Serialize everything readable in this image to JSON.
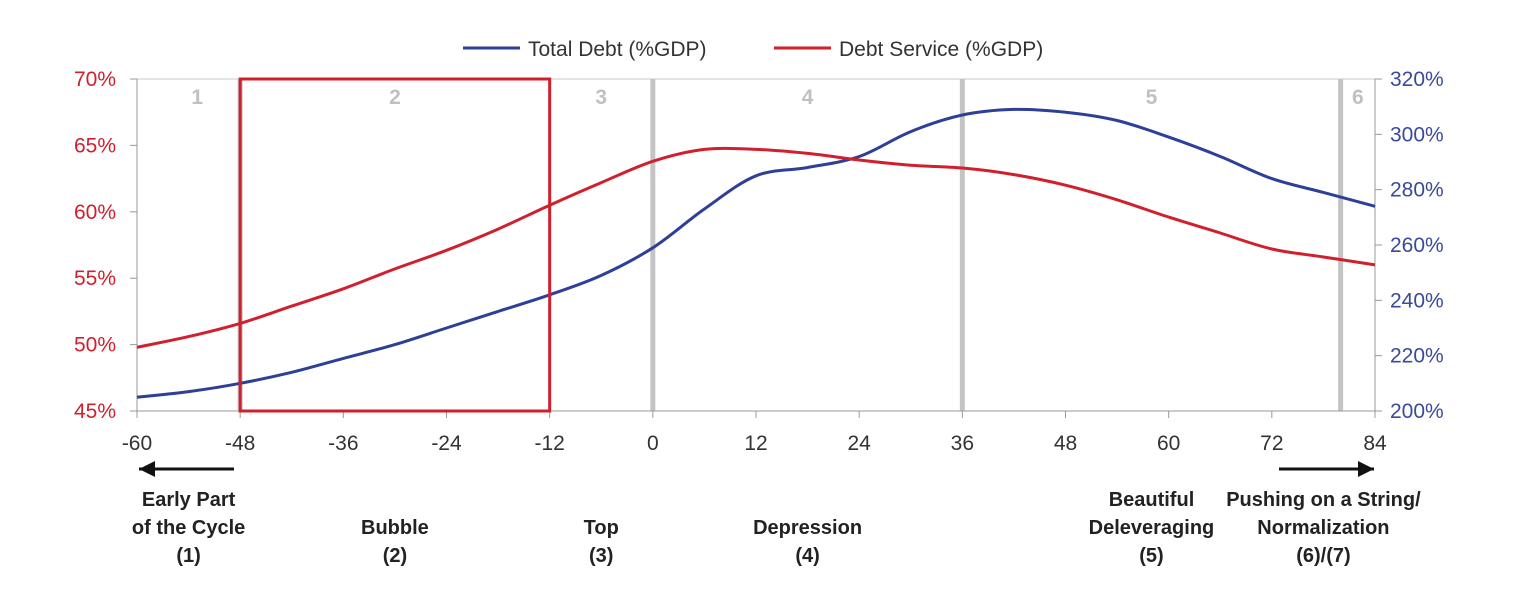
{
  "chart_data": {
    "type": "line",
    "title": "",
    "legend": [
      {
        "name": "Total Debt (%GDP)",
        "color": "#2e3f98",
        "axis": "right"
      },
      {
        "name": "Debt Service (%GDP)",
        "color": "#d0202e",
        "axis": "left"
      }
    ],
    "x_ticks": [
      -60,
      -48,
      -36,
      -24,
      -12,
      0,
      12,
      24,
      36,
      48,
      60,
      72,
      84
    ],
    "x_range": [
      -60,
      84
    ],
    "left_axis": {
      "range": [
        45,
        70
      ],
      "ticks": [
        45,
        50,
        55,
        60,
        65,
        70
      ],
      "tick_labels": [
        "45%",
        "50%",
        "55%",
        "60%",
        "65%",
        "70%"
      ],
      "color": "#d0202e"
    },
    "right_axis": {
      "range": [
        200,
        320
      ],
      "ticks": [
        200,
        220,
        240,
        260,
        280,
        300,
        320
      ],
      "tick_labels": [
        "200%",
        "220%",
        "240%",
        "260%",
        "280%",
        "300%",
        "320%"
      ],
      "color": "#3a4a9a"
    },
    "series": [
      {
        "name": "Total Debt (%GDP)",
        "axis": "right",
        "x": [
          -60,
          -54,
          -48,
          -42,
          -36,
          -30,
          -24,
          -18,
          -12,
          -6,
          0,
          6,
          12,
          18,
          24,
          30,
          36,
          42,
          48,
          54,
          60,
          66,
          72,
          78,
          84
        ],
        "values": [
          205,
          207,
          210,
          214,
          219,
          224,
          230,
          236,
          242,
          249,
          259,
          273,
          285,
          288,
          292,
          301,
          307,
          309,
          308,
          305,
          299,
          292,
          284,
          279,
          274
        ]
      },
      {
        "name": "Debt Service (%GDP)",
        "axis": "left",
        "x": [
          -60,
          -54,
          -48,
          -42,
          -36,
          -30,
          -24,
          -18,
          -12,
          -6,
          0,
          6,
          12,
          18,
          24,
          30,
          36,
          42,
          48,
          54,
          60,
          66,
          72,
          78,
          84
        ],
        "values": [
          49.8,
          50.6,
          51.6,
          52.9,
          54.2,
          55.7,
          57.1,
          58.7,
          60.5,
          62.2,
          63.8,
          64.7,
          64.7,
          64.4,
          63.9,
          63.5,
          63.3,
          62.8,
          62.0,
          60.9,
          59.6,
          58.4,
          57.2,
          56.6,
          56.0
        ]
      }
    ],
    "phase_dividers": [
      -48,
      0,
      36,
      80
    ],
    "phases": [
      {
        "label": "1",
        "x": -53
      },
      {
        "label": "2",
        "x": -30
      },
      {
        "label": "3",
        "x": -6
      },
      {
        "label": "4",
        "x": 18
      },
      {
        "label": "5",
        "x": 58
      },
      {
        "label": "6",
        "x": 82
      }
    ],
    "highlight_box": {
      "x_from": -48,
      "x_to": -12,
      "y_from": 45,
      "y_to": 70,
      "color": "#d0202e"
    },
    "stage_labels": [
      {
        "lines": [
          "Early Part",
          "of the Cycle",
          "(1)"
        ],
        "x": -54,
        "arrow": "left"
      },
      {
        "lines": [
          "Bubble",
          "(2)"
        ],
        "x": -30
      },
      {
        "lines": [
          "Top",
          "(3)"
        ],
        "x": -6
      },
      {
        "lines": [
          "Depression",
          "(4)"
        ],
        "x": 18
      },
      {
        "lines": [
          "Beautiful",
          "Deleveraging",
          "(5)"
        ],
        "x": 58
      },
      {
        "lines": [
          "Pushing on a String/",
          "Normalization",
          "(6)/(7)"
        ],
        "x": 78,
        "arrow": "right"
      }
    ]
  }
}
